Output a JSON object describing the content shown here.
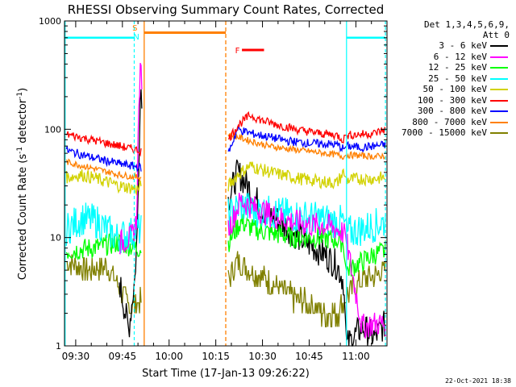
{
  "chart_data": {
    "type": "line",
    "title": "RHESSI Observing Summary Count Rates, Corrected",
    "xlabel": "Start Time (17-Jan-13 09:26:22)",
    "ylabel_main": "Corrected Count Rate (s",
    "ylabel_sup1": "-1",
    "ylabel_mid": " detector",
    "ylabel_sup2": "-1",
    "ylabel_end": ")",
    "yscale": "log",
    "ylim": [
      1,
      1000
    ],
    "y_ticks": [
      "1",
      "10",
      "100",
      "1000"
    ],
    "x_ticks": [
      "09:30",
      "09:45",
      "10:00",
      "10:15",
      "10:30",
      "10:45",
      "11:00"
    ],
    "legend_header": [
      "Det 1,3,4,5,6,9,",
      "Att 0"
    ],
    "series": [
      {
        "name": "3 - 6 keV",
        "color": "#000000"
      },
      {
        "name": "6 - 12 keV",
        "color": "#ff00ff"
      },
      {
        "name": "12 - 25 keV",
        "color": "#00ff00"
      },
      {
        "name": "25 - 50 keV",
        "color": "#00ffff"
      },
      {
        "name": "50 - 100 keV",
        "color": "#d2d200"
      },
      {
        "name": "100 - 300 keV",
        "color": "#ff0000"
      },
      {
        "name": "300 - 800 keV",
        "color": "#0000ff"
      },
      {
        "name": "800 - 7000 keV",
        "color": "#ff8000"
      },
      {
        "name": "7000 - 15000 keV",
        "color": "#808000"
      }
    ],
    "annotations": {
      "s_label": "S",
      "n_label": "N",
      "f_label": "F"
    },
    "timestamp": "22-Oct-2021 18:38"
  }
}
